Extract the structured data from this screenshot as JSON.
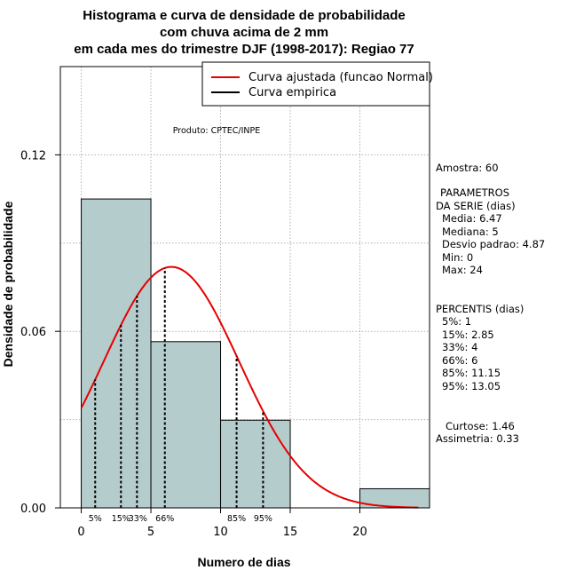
{
  "chart_data": {
    "type": "bar",
    "title_lines": [
      "Histograma e curva de densidade de probabilidade",
      "com chuva acima de 2 mm",
      "em cada mes do trimestre DJF (1998-2017): Regiao 77"
    ],
    "xlabel": "Numero de dias",
    "ylabel": "Densidade de probabilidade",
    "xlim": [
      -1.5,
      25
    ],
    "ylim": [
      0,
      0.15
    ],
    "x_ticks": [
      0,
      5,
      10,
      15,
      20
    ],
    "y_ticks": [
      0.0,
      0.06,
      0.12
    ],
    "y_tick_labels": [
      "0.00",
      "0.06",
      "0.12"
    ],
    "bins": [
      {
        "from": 0,
        "to": 5,
        "density": 0.105
      },
      {
        "from": 5,
        "to": 10,
        "density": 0.0565
      },
      {
        "from": 10,
        "to": 15,
        "density": 0.0298
      },
      {
        "from": 15,
        "to": 20,
        "density": 0
      },
      {
        "from": 20,
        "to": 25,
        "density": 0.0065
      }
    ],
    "normal_fit": {
      "mean": 6.47,
      "sd": 4.87,
      "x_from": 0,
      "x_to": 24.2
    },
    "percentile_lines": [
      {
        "label": "5%",
        "x": 1
      },
      {
        "label": "15%",
        "x": 2.85
      },
      {
        "label": "33%",
        "x": 4
      },
      {
        "label": "66%",
        "x": 6
      },
      {
        "label": "85%",
        "x": 11.15
      },
      {
        "label": "95%",
        "x": 13.05
      }
    ],
    "legend": [
      {
        "label": "Curva ajustada (funcao Normal)",
        "color": "#e60000"
      },
      {
        "label": "Curva empirica",
        "color": "#000000"
      }
    ],
    "legend_position": "top-right",
    "product_label": "Produto: CPTEC/INPE",
    "colors": {
      "bar_fill": "#b5cccc",
      "curve": "#e60000",
      "grid": "#b0b0b0"
    }
  },
  "stats_panel": {
    "amostra": "Amostra: 60",
    "params_title_1": "PARAMETROS",
    "params_title_2": "DA SERIE (dias)",
    "media": "Media: 6.47",
    "mediana": "Mediana: 5",
    "desvio": "Desvio padrao: 4.87",
    "min": "Min: 0",
    "max": "Max: 24",
    "percentis_title": "PERCENTIS (dias)",
    "p5": "5%: 1",
    "p15": "15%: 2.85",
    "p33": "33%: 4",
    "p66": "66%: 6",
    "p85": "85%: 11.15",
    "p95": "95%: 13.05",
    "curtose": "Curtose: 1.46",
    "assimetria": "Assimetria: 0.33"
  }
}
